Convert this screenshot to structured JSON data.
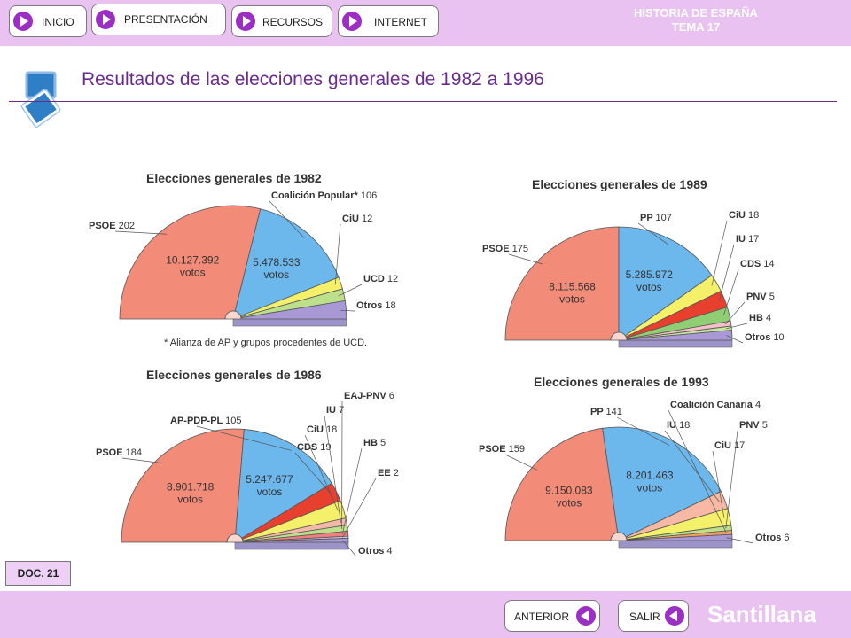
{
  "nav": {
    "inicio": "INICIO",
    "presentacion": "PRESENTACIÓN",
    "recursos": "RECURSOS",
    "internet": "INTERNET"
  },
  "header": {
    "line1": "HISTORIA DE ESPAÑA",
    "line2": "TEMA 17"
  },
  "page_title": "Resultados de las elecciones generales de 1982 a 1996",
  "doc_label": "DOC. 21",
  "bottom": {
    "anterior": "ANTERIOR",
    "salir": "SALIR",
    "brand": "Santillana"
  },
  "colors": {
    "bar": "#e9c2f2",
    "accent": "#9b2fc4",
    "title": "#6b2a8e"
  },
  "chart_data": [
    {
      "type": "pie",
      "title": "Elecciones generales de 1982",
      "series": [
        {
          "label": "PSOE",
          "value": 202,
          "votes": "10.127.392",
          "votes_word": "votos",
          "color": "#f28b78"
        },
        {
          "label": "Coalición Popular*",
          "value": 106,
          "votes": "5.478.533",
          "votes_word": "votos",
          "color": "#6cb8ec"
        },
        {
          "label": "CiU",
          "value": 12,
          "color": "#f5f06a"
        },
        {
          "label": "UCD",
          "value": 12,
          "color": "#bde08a"
        },
        {
          "label": "Otros",
          "value": 18,
          "color": "#a898d6"
        }
      ],
      "footnote": "* Alianza de AP y grupos procedentes de UCD."
    },
    {
      "type": "pie",
      "title": "Elecciones generales de 1989",
      "series": [
        {
          "label": "PSOE",
          "value": 175,
          "votes": "8.115.568",
          "votes_word": "votos",
          "color": "#f28b78"
        },
        {
          "label": "PP",
          "value": 107,
          "votes": "5.285.972",
          "votes_word": "votos",
          "color": "#6cb8ec"
        },
        {
          "label": "CiU",
          "value": 18,
          "color": "#f5f06a"
        },
        {
          "label": "IU",
          "value": 17,
          "color": "#e8402e"
        },
        {
          "label": "CDS",
          "value": 14,
          "color": "#8fce73"
        },
        {
          "label": "PNV",
          "value": 5,
          "color": "#f4c0c8"
        },
        {
          "label": "HB",
          "value": 4,
          "color": "#c7e69e"
        },
        {
          "label": "Otros",
          "value": 10,
          "color": "#a898d6"
        }
      ]
    },
    {
      "type": "pie",
      "title": "Elecciones generales de 1986",
      "series": [
        {
          "label": "PSOE",
          "value": 184,
          "votes": "8.901.718",
          "votes_word": "votos",
          "color": "#f28b78"
        },
        {
          "label": "AP-PDP-PL",
          "value": 105,
          "votes": "5.247.677",
          "votes_word": "votos",
          "color": "#6cb8ec"
        },
        {
          "label": "CDS",
          "value": 19,
          "color": "#e8402e"
        },
        {
          "label": "CiU",
          "value": 18,
          "color": "#f5f06a"
        },
        {
          "label": "IU",
          "value": 7,
          "color": "#f4b8a8"
        },
        {
          "label": "EAJ-PNV",
          "value": 6,
          "color": "#bde08a"
        },
        {
          "label": "HB",
          "value": 5,
          "color": "#f08080"
        },
        {
          "label": "EE",
          "value": 2,
          "color": "#d8c8ee"
        },
        {
          "label": "Otros",
          "value": 4,
          "color": "#a898d6"
        }
      ]
    },
    {
      "type": "pie",
      "title": "Elecciones generales de 1993",
      "series": [
        {
          "label": "PSOE",
          "value": 159,
          "votes": "9.150.083",
          "votes_word": "votos",
          "color": "#f28b78"
        },
        {
          "label": "PP",
          "value": 141,
          "votes": "8.201.463",
          "votes_word": "votos",
          "color": "#6cb8ec"
        },
        {
          "label": "IU",
          "value": 18,
          "color": "#f7b8a4"
        },
        {
          "label": "CiU",
          "value": 17,
          "color": "#f5f06a"
        },
        {
          "label": "PNV",
          "value": 5,
          "color": "#bde08a"
        },
        {
          "label": "Coalición Canaria",
          "value": 4,
          "color": "#f0a060"
        },
        {
          "label": "Otros",
          "value": 6,
          "color": "#a898d6"
        }
      ]
    }
  ]
}
